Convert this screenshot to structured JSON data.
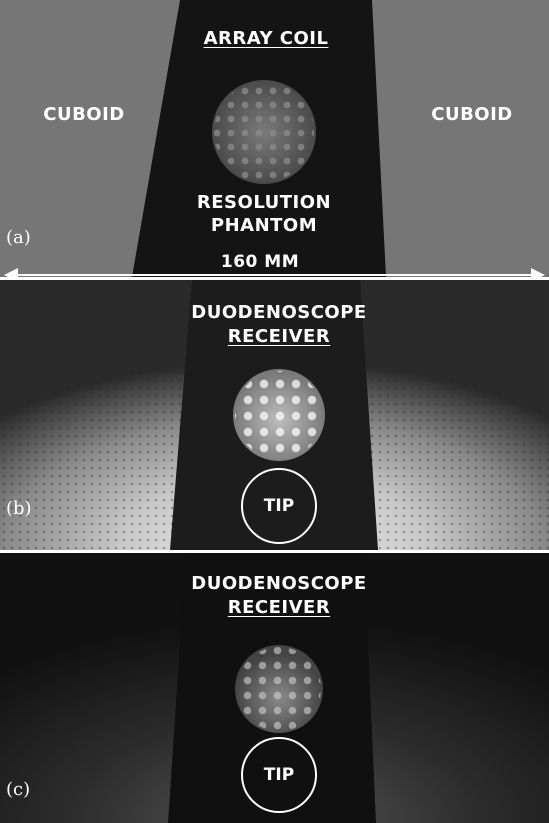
{
  "panel_a": {
    "label": "(a)",
    "title": "ARRAY COIL",
    "left_text": "CUBOID",
    "right_text": "CUBOID",
    "center_text_line1": "RESOLUTION",
    "center_text_line2": "PHANTOM",
    "scale_text": "160 MM"
  },
  "panel_b": {
    "label": "(b)",
    "title_line1": "DUODENOSCOPE",
    "title_line2": "RECEIVER",
    "tip_text": "TIP"
  },
  "panel_c": {
    "label": "(c)",
    "title_line1": "DUODENOSCOPE",
    "title_line2": "RECEIVER",
    "tip_text": "TIP"
  }
}
